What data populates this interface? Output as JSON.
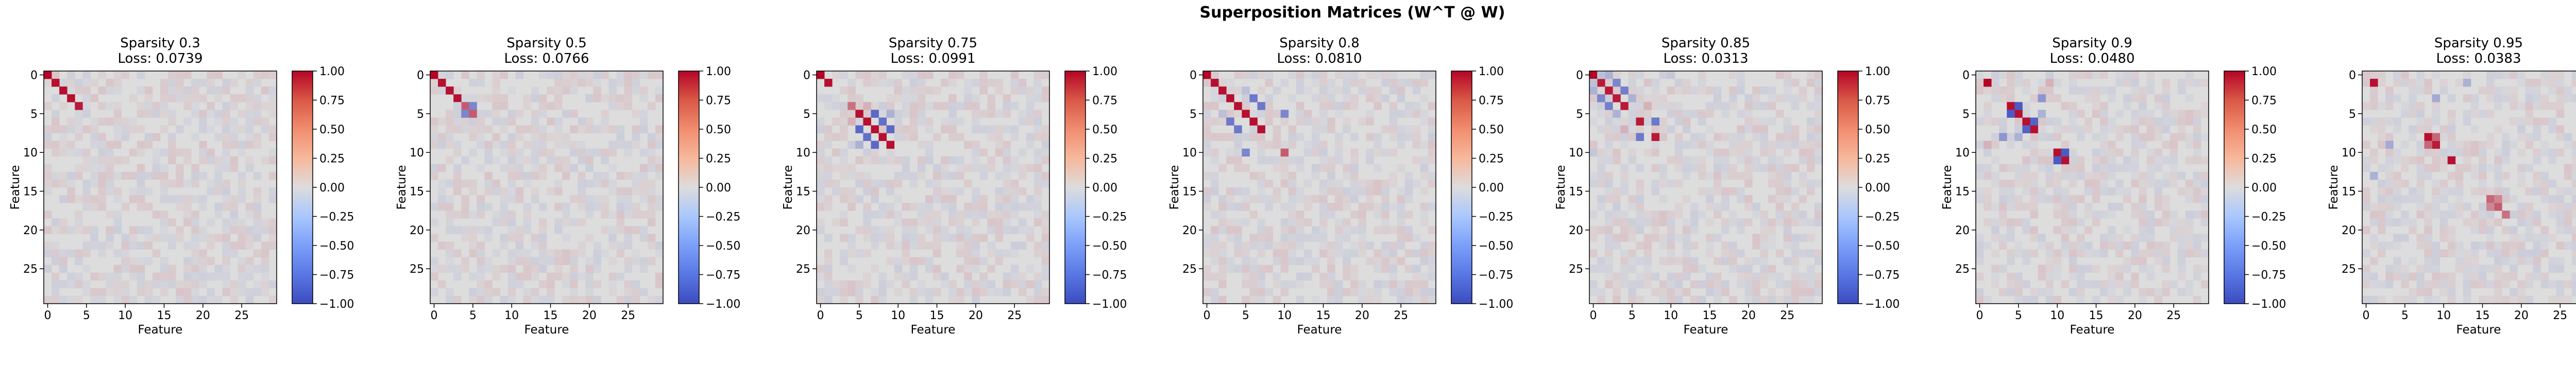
{
  "figure": {
    "title": "Superposition Matrices (W^T @ W)"
  },
  "colormap": {
    "name": "coolwarm",
    "low": "#3b4cc0",
    "mid": "#dddddd",
    "high": "#b40426",
    "vmin": -1.0,
    "vmax": 1.0,
    "colorbar_ticks": [
      "1.00",
      "0.75",
      "0.50",
      "0.25",
      "0.00",
      "−0.25",
      "−0.50",
      "−0.75",
      "−1.00"
    ]
  },
  "chart_data": [
    {
      "type": "heatmap",
      "title_line1": "Sparsity 0.3",
      "title_line2": "Loss: 0.0739",
      "xlabel": "Feature",
      "ylabel": "Feature",
      "size": 30,
      "x_ticks": [
        "0",
        "5",
        "10",
        "15",
        "20",
        "25"
      ],
      "y_ticks": [
        "0",
        "5",
        "10",
        "15",
        "20",
        "25"
      ],
      "cells": [
        [
          0,
          0,
          1.0
        ],
        [
          1,
          1,
          0.95
        ],
        [
          2,
          2,
          0.95
        ],
        [
          3,
          3,
          0.95
        ],
        [
          4,
          4,
          0.9
        ],
        [
          1,
          6,
          0.05
        ],
        [
          2,
          9,
          -0.05
        ]
      ]
    },
    {
      "type": "heatmap",
      "title_line1": "Sparsity 0.5",
      "title_line2": "Loss: 0.0766",
      "xlabel": "Feature",
      "ylabel": "Feature",
      "size": 30,
      "x_ticks": [
        "0",
        "5",
        "10",
        "15",
        "20",
        "25"
      ],
      "y_ticks": [
        "0",
        "5",
        "10",
        "15",
        "20",
        "25"
      ],
      "cells": [
        [
          0,
          0,
          1.0
        ],
        [
          1,
          1,
          0.95
        ],
        [
          2,
          2,
          0.95
        ],
        [
          3,
          3,
          0.95
        ],
        [
          4,
          4,
          0.6
        ],
        [
          4,
          5,
          -0.6
        ],
        [
          5,
          4,
          -0.6
        ],
        [
          5,
          5,
          0.6
        ],
        [
          4,
          3,
          -0.1
        ],
        [
          6,
          1,
          0.05
        ]
      ]
    },
    {
      "type": "heatmap",
      "title_line1": "Sparsity 0.75",
      "title_line2": "Loss: 0.0991",
      "xlabel": "Feature",
      "ylabel": "Feature",
      "size": 30,
      "x_ticks": [
        "0",
        "5",
        "10",
        "15",
        "20",
        "25"
      ],
      "y_ticks": [
        "0",
        "5",
        "10",
        "15",
        "20",
        "25"
      ],
      "cells": [
        [
          0,
          0,
          1.0
        ],
        [
          1,
          1,
          0.95
        ],
        [
          5,
          5,
          0.95
        ],
        [
          6,
          6,
          0.95
        ],
        [
          7,
          7,
          0.95
        ],
        [
          8,
          8,
          0.95
        ],
        [
          9,
          9,
          0.95
        ],
        [
          4,
          4,
          0.5
        ],
        [
          5,
          7,
          -0.8
        ],
        [
          7,
          5,
          -0.8
        ],
        [
          6,
          8,
          -0.75
        ],
        [
          8,
          6,
          -0.75
        ],
        [
          7,
          9,
          -0.8
        ],
        [
          9,
          7,
          -0.8
        ],
        [
          5,
          9,
          -0.3
        ],
        [
          9,
          5,
          -0.3
        ],
        [
          6,
          4,
          0.2
        ],
        [
          4,
          6,
          0.2
        ],
        [
          2,
          10,
          0.1
        ],
        [
          10,
          2,
          0.1
        ]
      ]
    },
    {
      "type": "heatmap",
      "title_line1": "Sparsity 0.8",
      "title_line2": "Loss: 0.0810",
      "xlabel": "Feature",
      "ylabel": "Feature",
      "size": 30,
      "x_ticks": [
        "0",
        "5",
        "10",
        "15",
        "20",
        "25"
      ],
      "y_ticks": [
        "0",
        "5",
        "10",
        "15",
        "20",
        "25"
      ],
      "cells": [
        [
          0,
          0,
          1.0
        ],
        [
          1,
          1,
          0.95
        ],
        [
          2,
          2,
          0.95
        ],
        [
          3,
          3,
          0.95
        ],
        [
          4,
          4,
          0.95
        ],
        [
          5,
          5,
          0.95
        ],
        [
          6,
          6,
          0.95
        ],
        [
          7,
          7,
          0.95
        ],
        [
          10,
          10,
          0.6
        ],
        [
          3,
          6,
          -0.7
        ],
        [
          6,
          3,
          -0.7
        ],
        [
          4,
          7,
          -0.7
        ],
        [
          7,
          4,
          -0.7
        ],
        [
          5,
          10,
          -0.6
        ],
        [
          10,
          5,
          -0.6
        ],
        [
          2,
          5,
          -0.2
        ],
        [
          5,
          2,
          -0.2
        ],
        [
          1,
          8,
          0.1
        ],
        [
          8,
          1,
          0.1
        ]
      ]
    },
    {
      "type": "heatmap",
      "title_line1": "Sparsity 0.85",
      "title_line2": "Loss: 0.0313",
      "xlabel": "Feature",
      "ylabel": "Feature",
      "size": 30,
      "x_ticks": [
        "0",
        "5",
        "10",
        "15",
        "20",
        "25"
      ],
      "y_ticks": [
        "0",
        "5",
        "10",
        "15",
        "20",
        "25"
      ],
      "cells": [
        [
          0,
          0,
          1.0
        ],
        [
          1,
          1,
          0.9
        ],
        [
          2,
          2,
          0.9
        ],
        [
          3,
          3,
          0.9
        ],
        [
          4,
          4,
          0.9
        ],
        [
          6,
          6,
          0.9
        ],
        [
          8,
          8,
          0.9
        ],
        [
          1,
          3,
          -0.6
        ],
        [
          3,
          1,
          -0.6
        ],
        [
          2,
          4,
          -0.65
        ],
        [
          4,
          2,
          -0.65
        ],
        [
          6,
          8,
          -0.7
        ],
        [
          8,
          6,
          -0.7
        ],
        [
          0,
          2,
          -0.3
        ],
        [
          2,
          0,
          -0.3
        ],
        [
          1,
          0,
          -0.2
        ],
        [
          0,
          1,
          -0.2
        ],
        [
          3,
          5,
          -0.3
        ],
        [
          5,
          3,
          -0.3
        ],
        [
          4,
          7,
          0.2
        ],
        [
          7,
          4,
          0.2
        ],
        [
          0,
          10,
          -0.15
        ],
        [
          10,
          0,
          -0.15
        ]
      ]
    },
    {
      "type": "heatmap",
      "title_line1": "Sparsity 0.9",
      "title_line2": "Loss: 0.0480",
      "xlabel": "Feature",
      "ylabel": "Feature",
      "size": 30,
      "x_ticks": [
        "0",
        "5",
        "10",
        "15",
        "20",
        "25"
      ],
      "y_ticks": [
        "0",
        "5",
        "10",
        "15",
        "20",
        "25"
      ],
      "cells": [
        [
          1,
          1,
          1.0
        ],
        [
          4,
          4,
          0.95
        ],
        [
          5,
          5,
          0.95
        ],
        [
          6,
          6,
          0.95
        ],
        [
          7,
          7,
          0.95
        ],
        [
          10,
          10,
          0.95
        ],
        [
          11,
          11,
          0.95
        ],
        [
          4,
          5,
          -0.9
        ],
        [
          5,
          4,
          -0.9
        ],
        [
          6,
          7,
          -0.85
        ],
        [
          7,
          6,
          -0.85
        ],
        [
          10,
          11,
          -0.9
        ],
        [
          11,
          10,
          -0.9
        ],
        [
          3,
          8,
          -0.5
        ],
        [
          8,
          3,
          -0.5
        ],
        [
          5,
          8,
          -0.3
        ],
        [
          8,
          5,
          -0.3
        ],
        [
          1,
          9,
          0.2
        ],
        [
          9,
          1,
          0.2
        ]
      ]
    },
    {
      "type": "heatmap",
      "title_line1": "Sparsity 0.95",
      "title_line2": "Loss: 0.0383",
      "xlabel": "Feature",
      "ylabel": "Feature",
      "size": 30,
      "x_ticks": [
        "0",
        "5",
        "10",
        "15",
        "20",
        "25"
      ],
      "y_ticks": [
        "0",
        "5",
        "10",
        "15",
        "20",
        "25"
      ],
      "cells": [
        [
          1,
          1,
          0.95
        ],
        [
          8,
          8,
          0.95
        ],
        [
          9,
          9,
          0.9
        ],
        [
          11,
          11,
          0.95
        ],
        [
          8,
          9,
          0.55
        ],
        [
          9,
          8,
          0.55
        ],
        [
          16,
          16,
          0.55
        ],
        [
          17,
          17,
          0.6
        ],
        [
          18,
          18,
          0.5
        ],
        [
          16,
          17,
          0.4
        ],
        [
          17,
          16,
          0.4
        ],
        [
          3,
          9,
          -0.35
        ],
        [
          9,
          3,
          -0.35
        ],
        [
          1,
          13,
          -0.3
        ],
        [
          13,
          1,
          -0.3
        ]
      ]
    }
  ]
}
